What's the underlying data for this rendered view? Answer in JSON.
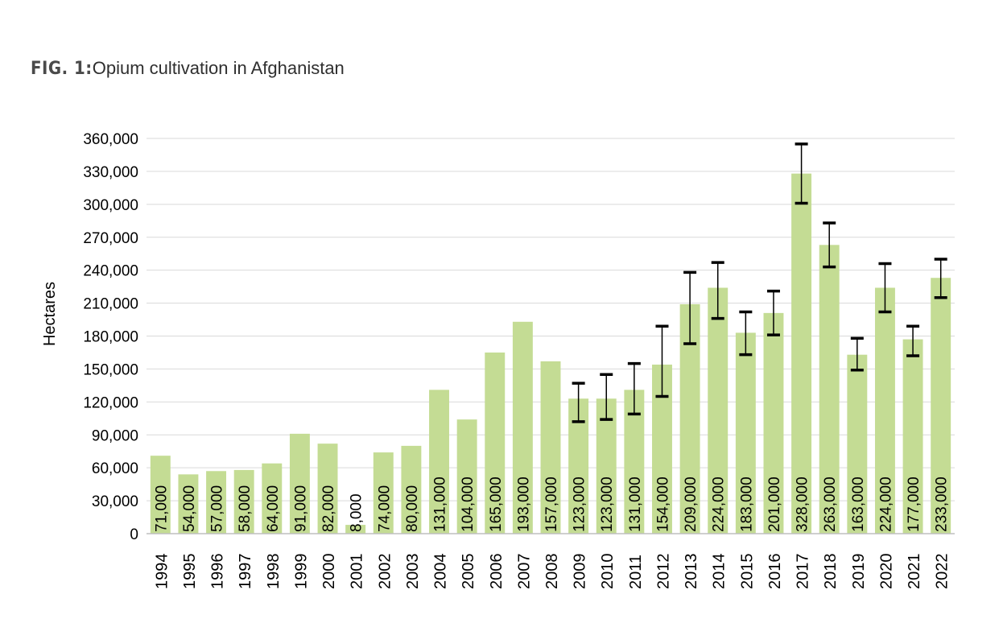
{
  "figure": {
    "label": "FIG. 1:",
    "title": "Opium cultivation in Afghanistan"
  },
  "chart_data": {
    "type": "bar",
    "title": "Opium cultivation in Afghanistan",
    "xlabel": "",
    "ylabel": "Hectares",
    "ylim": [
      0,
      360000
    ],
    "ytick_step": 30000,
    "y_tick_labels": [
      "0",
      "30,000",
      "60,000",
      "90,000",
      "120,000",
      "150,000",
      "180,000",
      "210,000",
      "240,000",
      "270,000",
      "300,000",
      "330,000",
      "360,000"
    ],
    "grid": true,
    "categories": [
      "1994",
      "1995",
      "1996",
      "1997",
      "1998",
      "1999",
      "2000",
      "2001",
      "2002",
      "2003",
      "2004",
      "2005",
      "2006",
      "2007",
      "2008",
      "2009",
      "2010",
      "2011",
      "2012",
      "2013",
      "2014",
      "2015",
      "2016",
      "2017",
      "2018",
      "2019",
      "2020",
      "2021",
      "2022"
    ],
    "values": [
      71000,
      54000,
      57000,
      58000,
      64000,
      91000,
      82000,
      8000,
      74000,
      80000,
      131000,
      104000,
      165000,
      193000,
      157000,
      123000,
      123000,
      131000,
      154000,
      209000,
      224000,
      183000,
      201000,
      328000,
      263000,
      163000,
      224000,
      177000,
      233000
    ],
    "value_labels": [
      "71,000",
      "54,000",
      "57,000",
      "58,000",
      "64,000",
      "91,000",
      "82,000",
      "8,000",
      "74,000",
      "80,000",
      "131,000",
      "104,000",
      "165,000",
      "193,000",
      "157,000",
      "123,000",
      "123,000",
      "131,000",
      "154,000",
      "209,000",
      "224,000",
      "183,000",
      "201,000",
      "328,000",
      "263,000",
      "163,000",
      "224,000",
      "177,000",
      "233,000"
    ],
    "error_bars": [
      null,
      null,
      null,
      null,
      null,
      null,
      null,
      null,
      null,
      null,
      null,
      null,
      null,
      null,
      null,
      [
        102000,
        137000
      ],
      [
        104000,
        145000
      ],
      [
        109000,
        155000
      ],
      [
        125000,
        189000
      ],
      [
        173000,
        238000
      ],
      [
        196000,
        247000
      ],
      [
        163000,
        202000
      ],
      [
        181000,
        221000
      ],
      [
        301000,
        355000
      ],
      [
        243000,
        283000
      ],
      [
        149000,
        178000
      ],
      [
        202000,
        246000
      ],
      [
        162000,
        189000
      ],
      [
        215000,
        250000
      ]
    ],
    "bar_color": "#c4dc94",
    "grid_color": "#d9d9d9",
    "axis_color": "#bfbfbf",
    "error_bar_color": "#000000"
  }
}
